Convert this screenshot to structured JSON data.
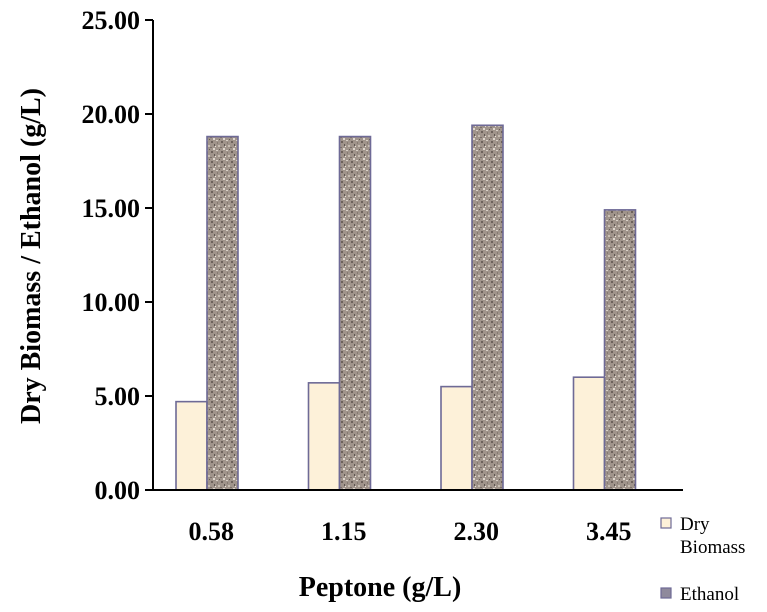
{
  "chart_data": {
    "type": "bar",
    "title": "",
    "xlabel": "Peptone (g/L)",
    "ylabel": "Dry Biomass / Ethanol (g/L)",
    "categories": [
      "0.58",
      "1.15",
      "2.30",
      "3.45"
    ],
    "ylim": [
      0,
      25
    ],
    "yticks": [
      "0.00",
      "5.00",
      "10.00",
      "15.00",
      "20.00",
      "25.00"
    ],
    "grid": false,
    "legend_position": "right",
    "series": [
      {
        "name": "Dry Biomass",
        "legend_lines": [
          "Dry",
          "Biomass"
        ],
        "values": [
          4.7,
          5.7,
          5.5,
          6.0
        ],
        "color": "#fdf1d9"
      },
      {
        "name": "Ethanol",
        "legend_lines": [
          "Ethanol"
        ],
        "values": [
          18.8,
          18.8,
          19.4,
          14.9
        ],
        "color": "#9e9188"
      }
    ],
    "bar_outline_color": "#6e6a96"
  }
}
